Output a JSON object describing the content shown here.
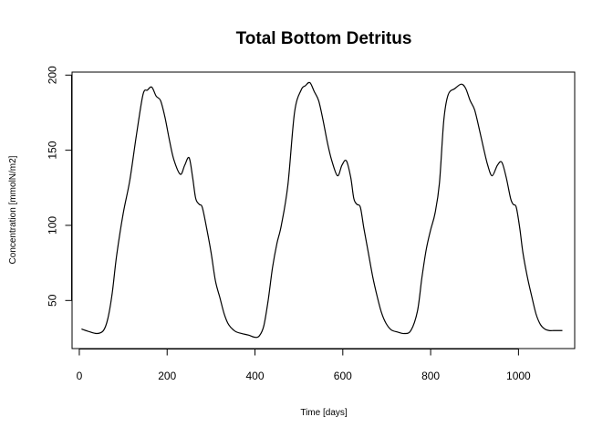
{
  "chart_data": {
    "type": "line",
    "title": "Total Bottom Detritus",
    "xlabel": "Time [days]",
    "ylabel": "Concentration [mmolN/m2]",
    "xlim": [
      0,
      1100
    ],
    "ylim": [
      18,
      202
    ],
    "xticks": [
      0,
      200,
      400,
      600,
      800,
      1000
    ],
    "yticks": [
      50,
      100,
      150,
      200
    ],
    "grid": false,
    "legend": "none",
    "line_color": "#000000",
    "series": [
      {
        "x": [
          5,
          20,
          40,
          55,
          65,
          75,
          85,
          100,
          115,
          130,
          145,
          155,
          165,
          175,
          185,
          195,
          205,
          215,
          230,
          240,
          250,
          258,
          265,
          273,
          280,
          290,
          300,
          310,
          320,
          330,
          340,
          355,
          370,
          385,
          400,
          410,
          420,
          430,
          440,
          450,
          460,
          475,
          490,
          505,
          515,
          525,
          535,
          545,
          555,
          565,
          575,
          588,
          598,
          608,
          618,
          625,
          632,
          640,
          648,
          658,
          668,
          678,
          688,
          698,
          710,
          725,
          740,
          755,
          770,
          780,
          790,
          800,
          810,
          820,
          830,
          840,
          855,
          870,
          880,
          890,
          900,
          910,
          920,
          930,
          940,
          952,
          962,
          972,
          982,
          988,
          995,
          1003,
          1010,
          1020,
          1030,
          1040,
          1050,
          1060,
          1070,
          1080,
          1090,
          1100
        ],
        "y": [
          31,
          29.5,
          28,
          30,
          38,
          55,
          80,
          108,
          130,
          160,
          187,
          190,
          192,
          186,
          183,
          172,
          157,
          144,
          134,
          140,
          145,
          132,
          118,
          114,
          112,
          98,
          82,
          63,
          52,
          41,
          34,
          29.5,
          28,
          27,
          25.5,
          26.5,
          33,
          50,
          72,
          88,
          100,
          127,
          175,
          190,
          193,
          195,
          189,
          183,
          170,
          155,
          143,
          133,
          140,
          143,
          132,
          118,
          114,
          112,
          98,
          82,
          66,
          53,
          42,
          35,
          30.5,
          29,
          28,
          30,
          43,
          65,
          84,
          97,
          108,
          128,
          170,
          187,
          191,
          194,
          191,
          183,
          177,
          165,
          152,
          140,
          133,
          140,
          142,
          132,
          118,
          114,
          112,
          98,
          82,
          66,
          53,
          41,
          34,
          31,
          30,
          30,
          30,
          30
        ]
      }
    ]
  }
}
